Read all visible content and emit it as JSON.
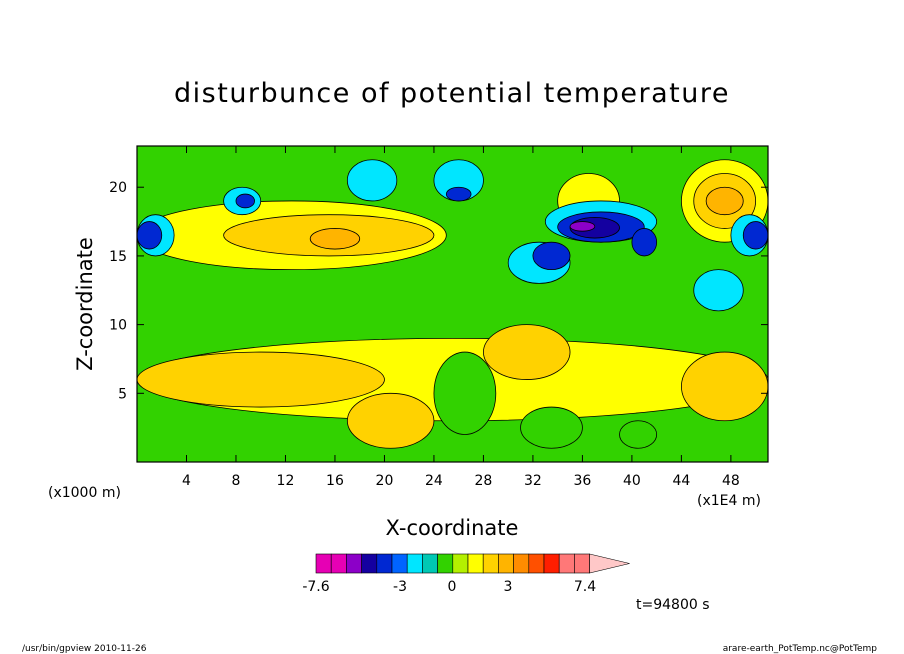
{
  "chart_data": {
    "type": "heatmap",
    "title": "disturbunce of potential temperature",
    "xlabel": "X-coordinate",
    "ylabel": "Z-coordinate",
    "x_unit": "(x1E4 m)",
    "y_unit": "(x1000 m)",
    "xlim": [
      0,
      51
    ],
    "ylim": [
      0,
      23
    ],
    "x_ticks": [
      4,
      8,
      12,
      16,
      20,
      24,
      28,
      32,
      36,
      40,
      44,
      48
    ],
    "y_ticks": [
      5,
      10,
      15,
      20
    ],
    "colorbar": {
      "colors": [
        "#e600b4",
        "#e600b4",
        "#8c00c8",
        "#1400a0",
        "#0028d2",
        "#0064ff",
        "#00e6ff",
        "#00c8b4",
        "#32d200",
        "#b4f000",
        "#ffff00",
        "#ffd200",
        "#ffb400",
        "#ff8c00",
        "#ff5000",
        "#ff1e00",
        "#ff7878",
        "#ff7878",
        "#ffc8c8"
      ],
      "labels": [
        "-7.6",
        "-3",
        "0",
        "3",
        "7.4"
      ]
    },
    "time_label": "t=94800 s",
    "regions": [
      {
        "x": 0,
        "z": 0,
        "w": 51,
        "h": 23,
        "level": 0
      },
      {
        "x": 0,
        "z": 3,
        "w": 51,
        "h": 6,
        "level": 1
      },
      {
        "x": 0,
        "z": 4,
        "w": 20,
        "h": 4,
        "level": 2
      },
      {
        "x": 17,
        "z": 1,
        "w": 7,
        "h": 4,
        "level": 2
      },
      {
        "x": 28,
        "z": 6,
        "w": 7,
        "h": 4,
        "level": 2
      },
      {
        "x": 44,
        "z": 3,
        "w": 7,
        "h": 5,
        "level": 2
      },
      {
        "x": 24,
        "z": 2,
        "w": 5,
        "h": 6,
        "level": -1
      },
      {
        "x": 31,
        "z": 1,
        "w": 5,
        "h": 3,
        "level": -1
      },
      {
        "x": 39,
        "z": 1,
        "w": 3,
        "h": 2,
        "level": -1
      },
      {
        "x": 0,
        "z": 14,
        "w": 25,
        "h": 5,
        "level": 1
      },
      {
        "x": 7,
        "z": 15,
        "w": 17,
        "h": 3,
        "level": 2
      },
      {
        "x": 14,
        "z": 15.5,
        "w": 4,
        "h": 1.5,
        "level": 3
      },
      {
        "x": 34,
        "z": 17,
        "w": 5,
        "h": 4,
        "level": 1
      },
      {
        "x": 44,
        "z": 16,
        "w": 7,
        "h": 6,
        "level": 1
      },
      {
        "x": 45,
        "z": 17,
        "w": 5,
        "h": 4,
        "level": 2
      },
      {
        "x": 46,
        "z": 18,
        "w": 3,
        "h": 2,
        "level": 3
      },
      {
        "x": 0,
        "z": 15,
        "w": 3,
        "h": 3,
        "level": -2
      },
      {
        "x": 0,
        "z": 15.5,
        "w": 2,
        "h": 2,
        "level": -3
      },
      {
        "x": 48,
        "z": 15,
        "w": 3,
        "h": 3,
        "level": -2
      },
      {
        "x": 49,
        "z": 15.5,
        "w": 2,
        "h": 2,
        "level": -3
      },
      {
        "x": 30,
        "z": 13,
        "w": 5,
        "h": 3,
        "level": -2
      },
      {
        "x": 32,
        "z": 14,
        "w": 3,
        "h": 2,
        "level": -3
      },
      {
        "x": 33,
        "z": 16,
        "w": 9,
        "h": 3,
        "level": -2
      },
      {
        "x": 34,
        "z": 16,
        "w": 7,
        "h": 2.2,
        "level": -3
      },
      {
        "x": 35,
        "z": 16.3,
        "w": 4,
        "h": 1.5,
        "level": -4
      },
      {
        "x": 35,
        "z": 16.8,
        "w": 2,
        "h": 0.7,
        "level": -5
      },
      {
        "x": 24,
        "z": 19,
        "w": 4,
        "h": 3,
        "level": -2
      },
      {
        "x": 25,
        "z": 19,
        "w": 2,
        "h": 1,
        "level": -3
      },
      {
        "x": 45,
        "z": 11,
        "w": 4,
        "h": 3,
        "level": -2
      },
      {
        "x": 17,
        "z": 19,
        "w": 4,
        "h": 3,
        "level": -2
      },
      {
        "x": 7,
        "z": 18,
        "w": 3,
        "h": 2,
        "level": -2
      },
      {
        "x": 8,
        "z": 18.5,
        "w": 1.5,
        "h": 1,
        "level": -3
      },
      {
        "x": 40,
        "z": 15,
        "w": 2,
        "h": 2,
        "level": -3
      }
    ],
    "contour_levels": [
      -5,
      -4,
      -3,
      -2,
      -1,
      0,
      1,
      2,
      3,
      4,
      5
    ]
  },
  "footer": {
    "left": "/usr/bin/gpview   2010-11-26",
    "right": "arare-earth_PotTemp.nc@PotTemp"
  }
}
